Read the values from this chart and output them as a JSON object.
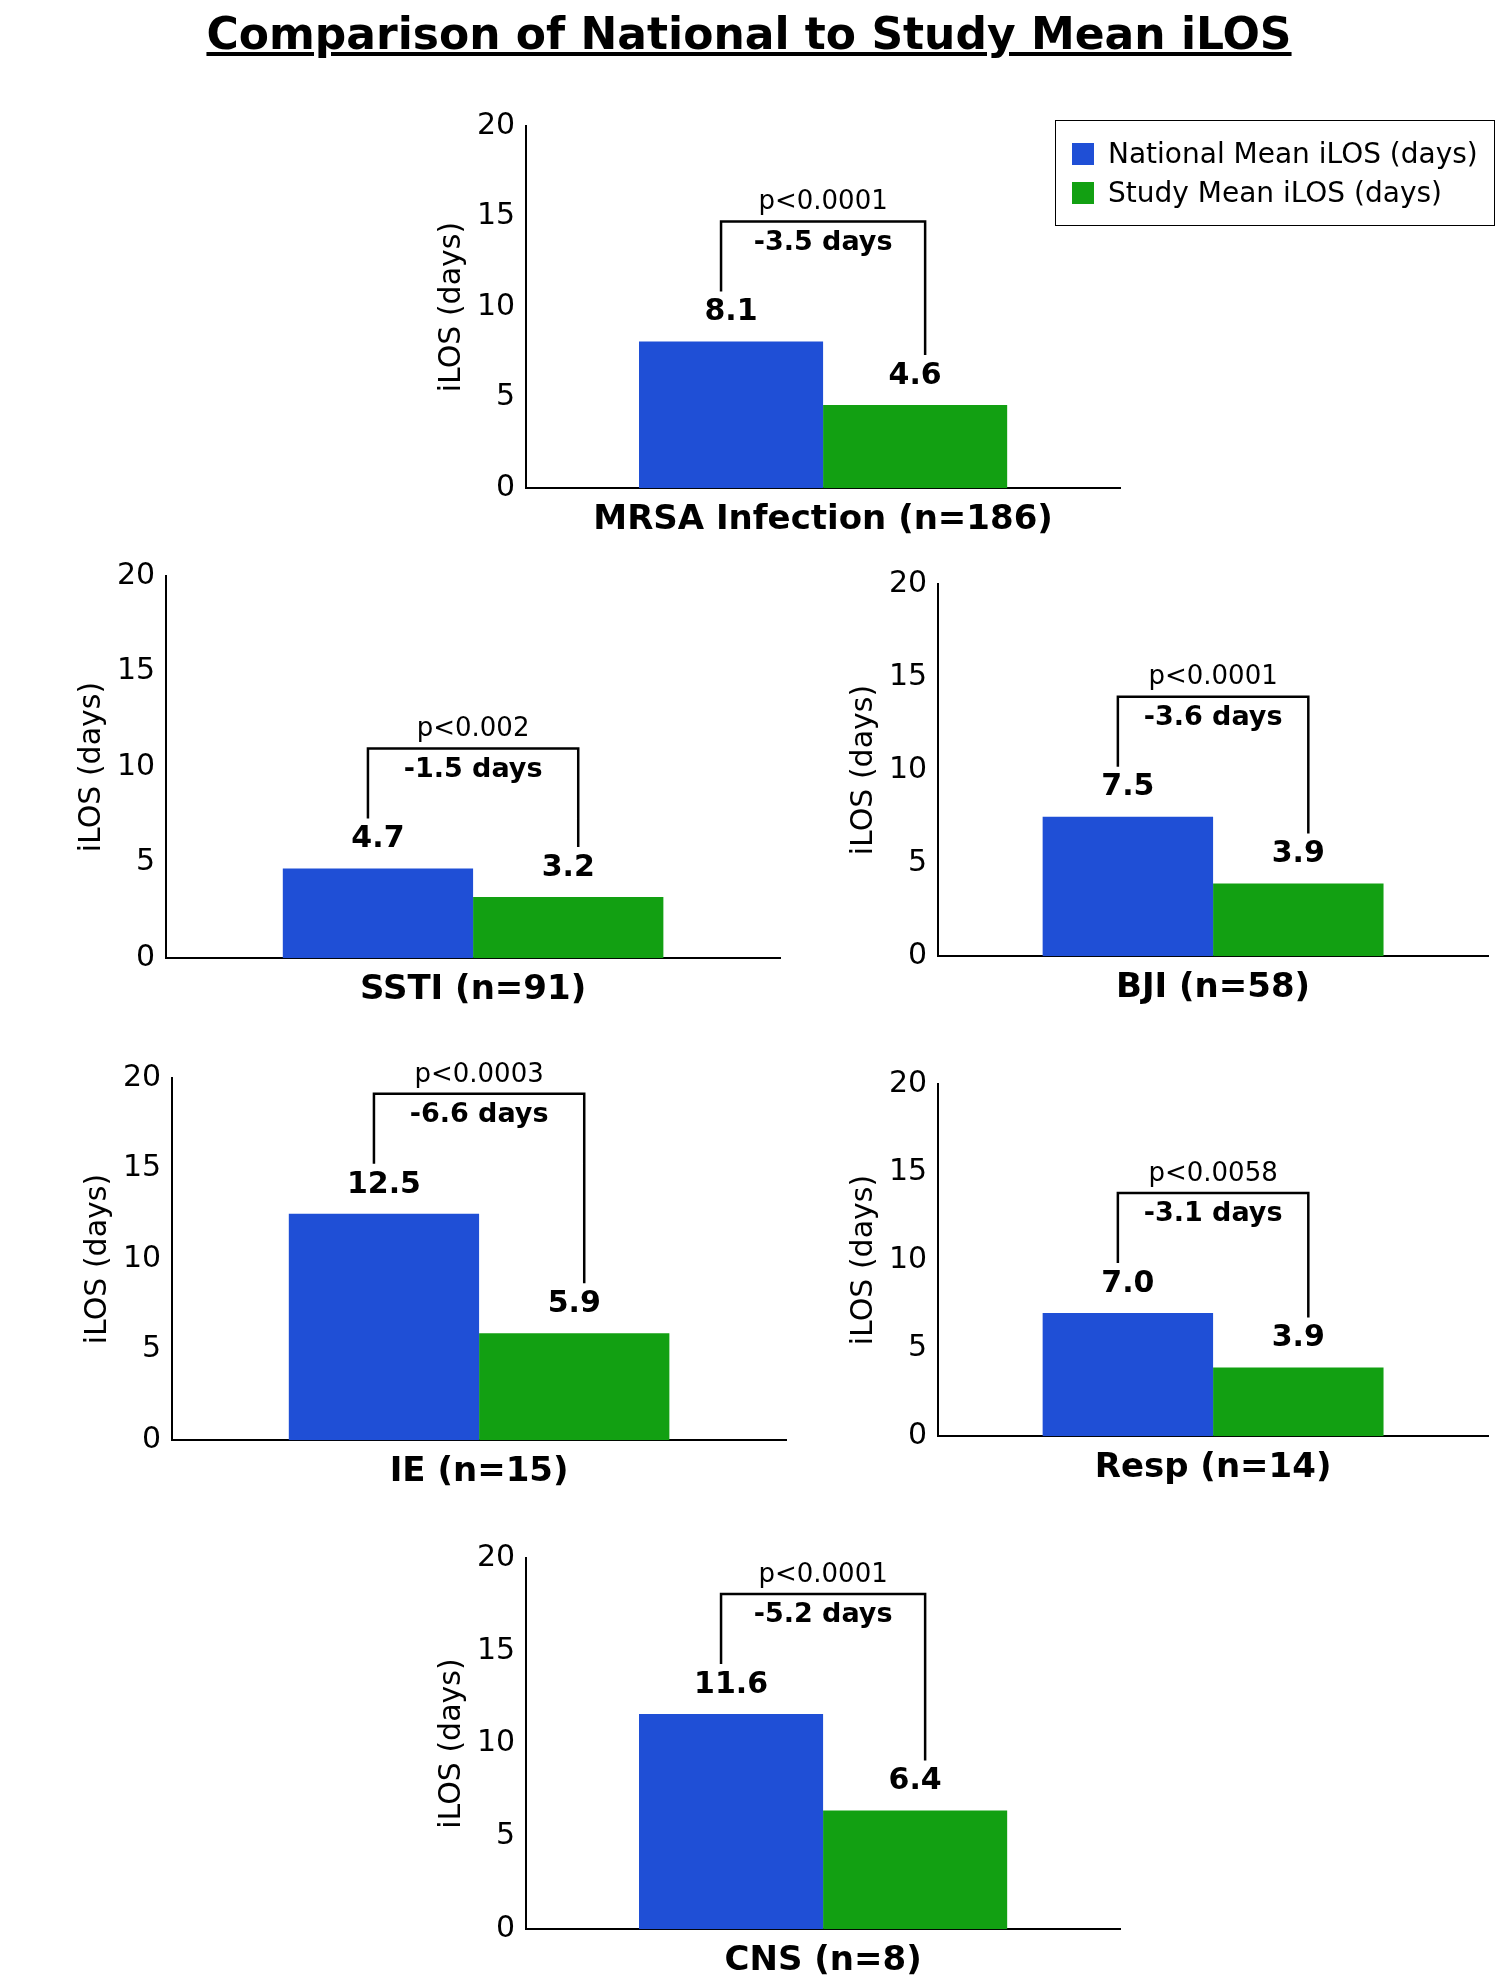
{
  "chart_data": [
    {
      "type": "bar",
      "title": "Comparison of National to Study Mean iLOS",
      "xlabel": "MRSA Infection (n=186)",
      "ylabel": "iLOS (days)",
      "categories": [
        null
      ],
      "legend": "top right",
      "tick_labels": "y",
      "ylim": [
        0,
        20
      ],
      "yticks": [
        0,
        5,
        10,
        15,
        20
      ],
      "annotations": [
        "p<0.0001",
        "-3.5 days"
      ],
      "series": [
        {
          "name": "National Mean iLOS (days)",
          "color": "#1f4fd6",
          "values": [
            8.1
          ],
          "value_labels": [
            "8.1"
          ]
        },
        {
          "name": "Study Mean iLOS (days)",
          "color": "#12a012",
          "values": [
            4.6
          ],
          "value_labels": [
            "4.6"
          ]
        }
      ]
    },
    {
      "type": "bar",
      "xlabel": "SSTI (n=91)",
      "ylabel": "iLOS (days)",
      "categories": [
        null
      ],
      "tick_labels": "y",
      "ylim": [
        0,
        20
      ],
      "yticks": [
        0,
        5,
        10,
        15,
        20
      ],
      "annotations": [
        "p<0.002",
        "-1.5 days"
      ],
      "series": [
        {
          "color": "#1f4fd6",
          "values": [
            4.7
          ],
          "value_labels": [
            "4.7"
          ]
        },
        {
          "color": "#12a012",
          "values": [
            3.2
          ],
          "value_labels": [
            "3.2"
          ]
        }
      ]
    },
    {
      "type": "bar",
      "xlabel": "BJI (n=58)",
      "ylabel": "iLOS (days)",
      "categories": [
        null
      ],
      "tick_labels": "y",
      "ylim": [
        0,
        20
      ],
      "yticks": [
        0,
        5,
        10,
        15,
        20
      ],
      "annotations": [
        "p<0.0001",
        "-3.6 days"
      ],
      "series": [
        {
          "color": "#1f4fd6",
          "values": [
            7.5
          ],
          "value_labels": [
            "7.5"
          ]
        },
        {
          "color": "#12a012",
          "values": [
            3.9
          ],
          "value_labels": [
            "3.9"
          ]
        }
      ]
    },
    {
      "type": "bar",
      "xlabel": "IE (n=15)",
      "ylabel": "iLOS (days)",
      "categories": [
        null
      ],
      "tick_labels": "y",
      "ylim": [
        0,
        20
      ],
      "yticks": [
        0,
        5,
        10,
        15,
        20
      ],
      "annotations": [
        "p<0.0003",
        "-6.6 days"
      ],
      "series": [
        {
          "color": "#1f4fd6",
          "values": [
            12.5
          ],
          "value_labels": [
            "12.5"
          ]
        },
        {
          "color": "#12a012",
          "values": [
            5.9
          ],
          "value_labels": [
            "5.9"
          ]
        }
      ]
    },
    {
      "type": "bar",
      "xlabel": "Resp (n=14)",
      "ylabel": "iLOS (days)",
      "categories": [
        null
      ],
      "tick_labels": "y",
      "ylim": [
        0,
        20
      ],
      "yticks": [
        0,
        5,
        10,
        15,
        20
      ],
      "annotations": [
        "p<0.0058",
        "-3.1 days"
      ],
      "series": [
        {
          "color": "#1f4fd6",
          "values": [
            7.0
          ],
          "value_labels": [
            "7.0"
          ]
        },
        {
          "color": "#12a012",
          "values": [
            3.9
          ],
          "value_labels": [
            "3.9"
          ]
        }
      ]
    },
    {
      "type": "bar",
      "xlabel": "CNS (n=8)",
      "ylabel": "iLOS (days)",
      "categories": [
        null
      ],
      "tick_labels": "y",
      "ylim": [
        0,
        20
      ],
      "yticks": [
        0,
        5,
        10,
        15,
        20
      ],
      "annotations": [
        "p<0.0001",
        "-5.2 days"
      ],
      "series": [
        {
          "color": "#1f4fd6",
          "values": [
            11.6
          ],
          "value_labels": [
            "11.6"
          ]
        },
        {
          "color": "#12a012",
          "values": [
            6.4
          ],
          "value_labels": [
            "6.4"
          ]
        }
      ]
    }
  ]
}
